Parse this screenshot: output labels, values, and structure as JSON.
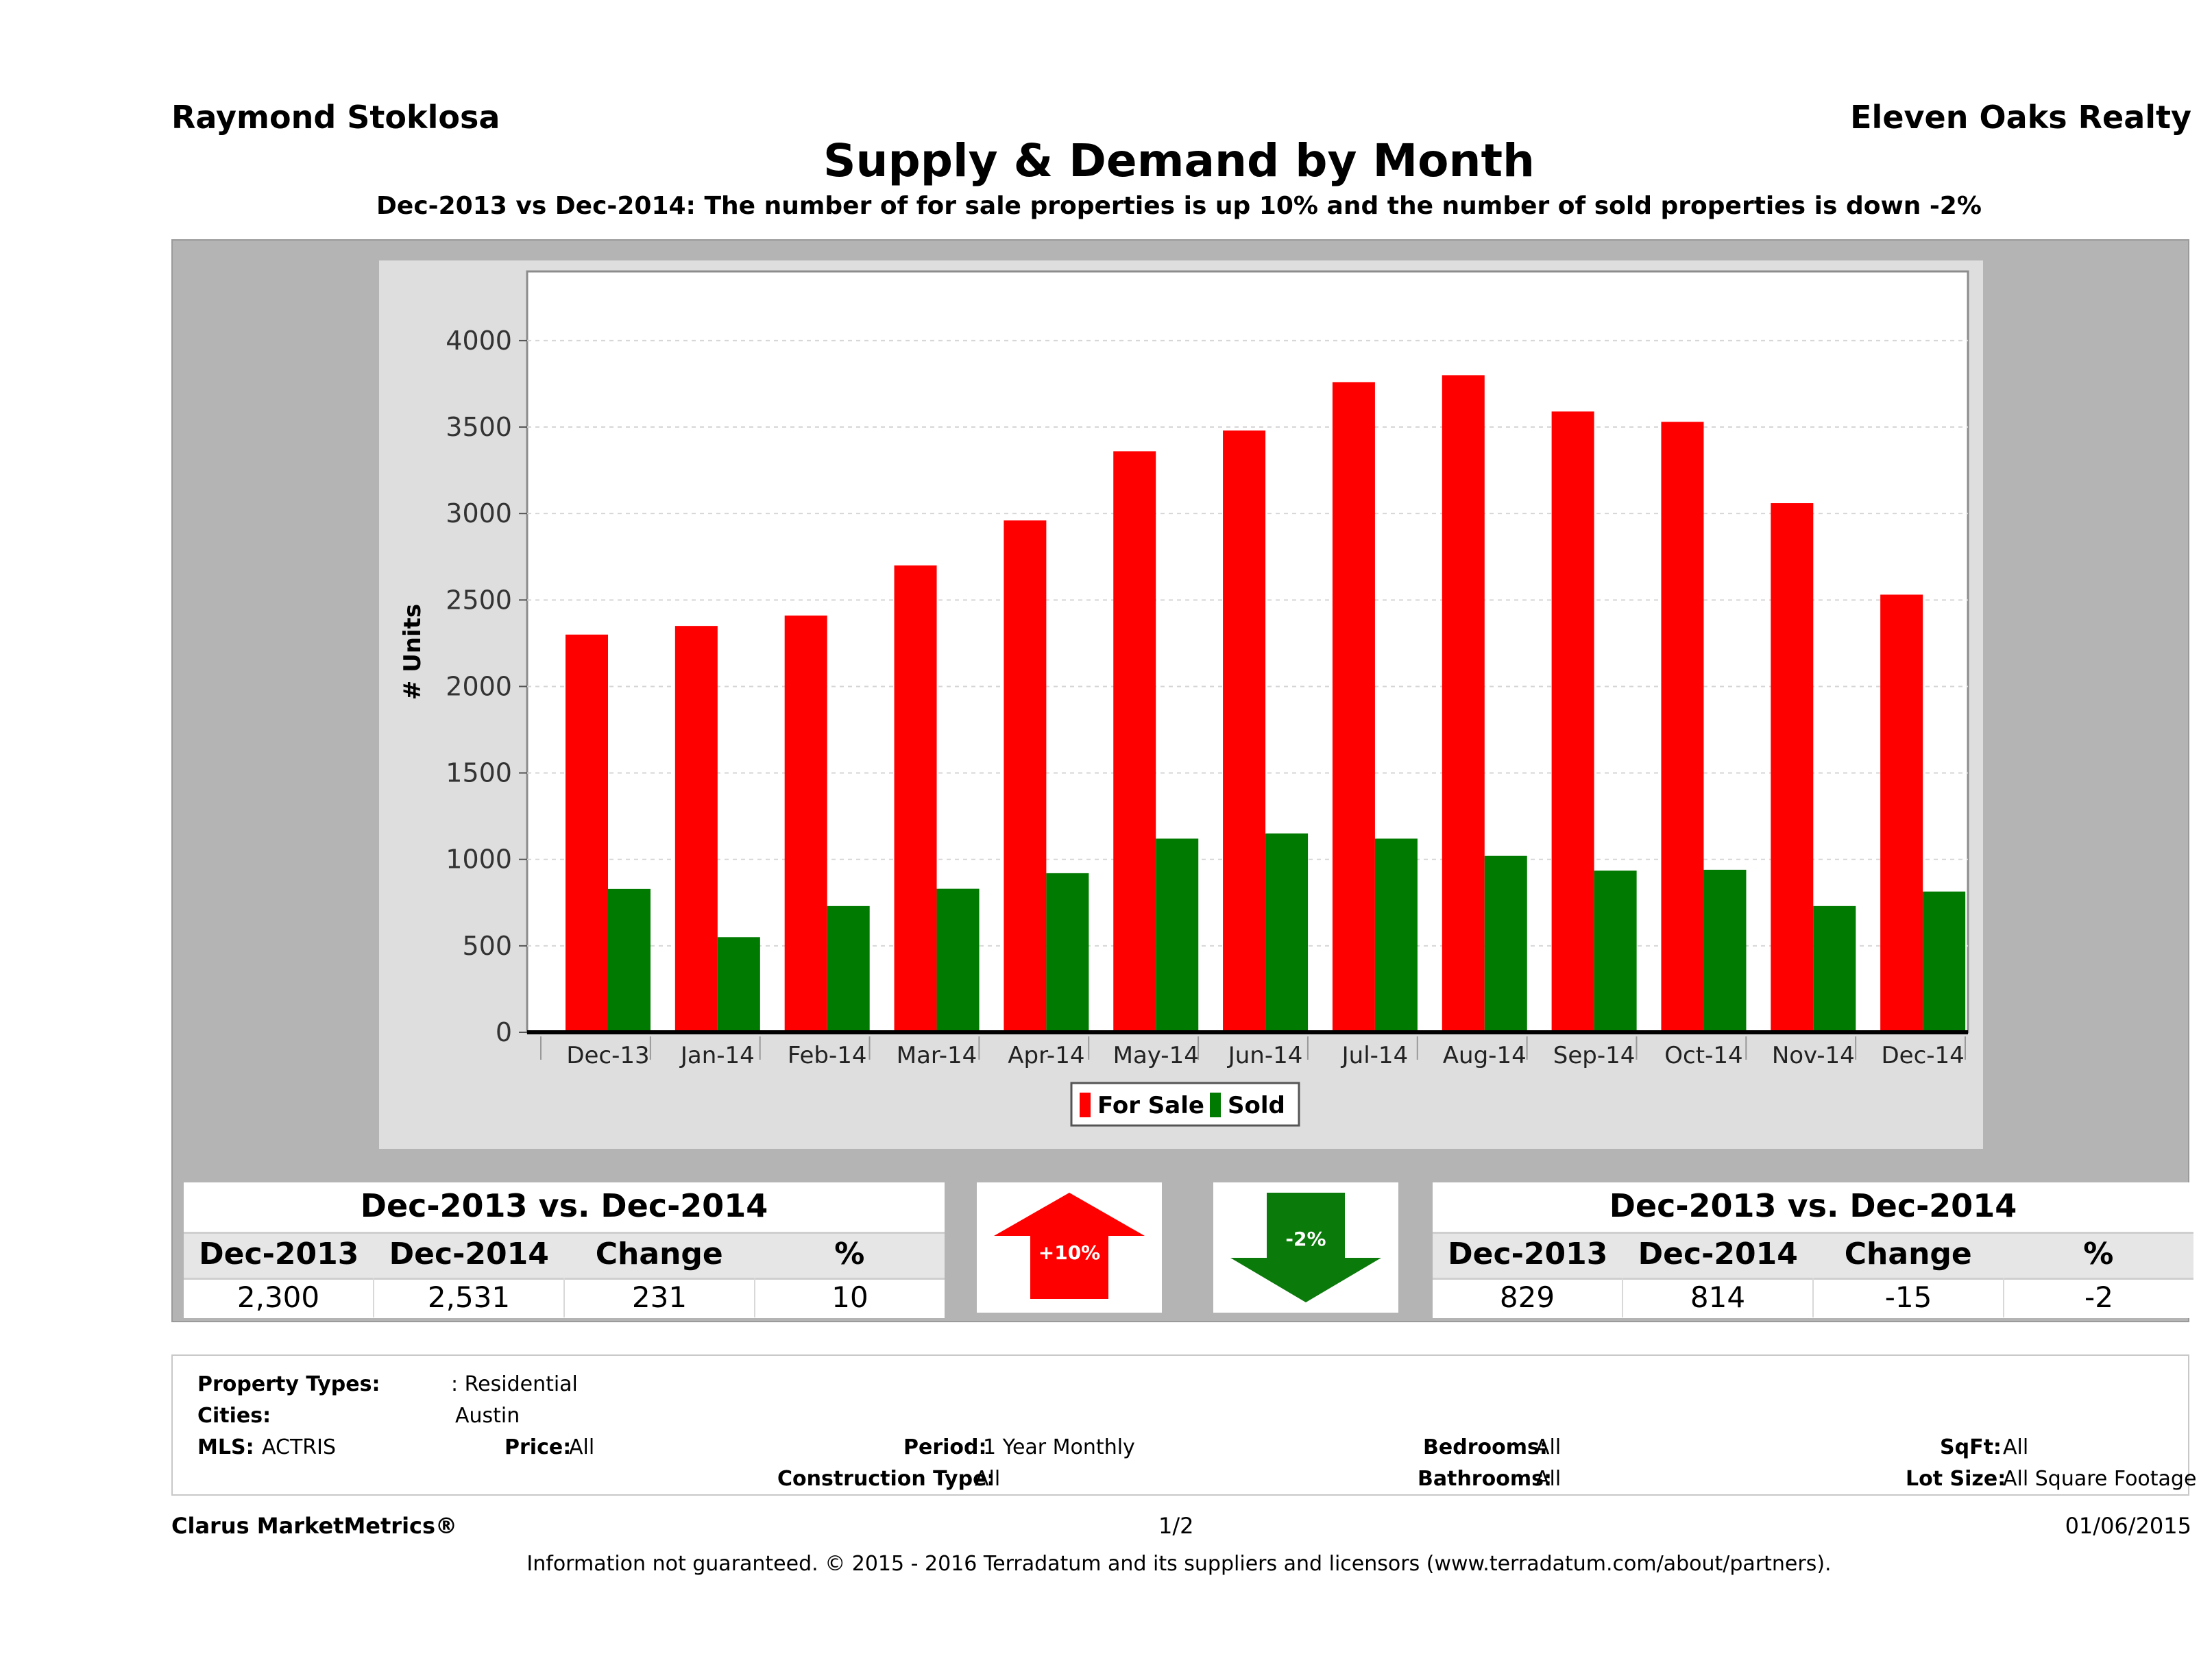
{
  "header": {
    "agent_name": "Raymond Stoklosa",
    "company": "Eleven Oaks Realty",
    "title": "Supply & Demand by Month",
    "subtitle": "Dec-2013 vs Dec-2014: The number of for sale properties is up 10% and the number of sold properties is down -2%"
  },
  "chart_data": {
    "type": "bar",
    "ylabel": "# Units",
    "xlabel": "",
    "ylim": [
      0,
      4400
    ],
    "yticks": [
      0,
      500,
      1000,
      1500,
      2000,
      2500,
      3000,
      3500,
      4000
    ],
    "grid": true,
    "legend_position": "bottom-center",
    "categories": [
      "Dec-13",
      "Jan-14",
      "Feb-14",
      "Mar-14",
      "Apr-14",
      "May-14",
      "Jun-14",
      "Jul-14",
      "Aug-14",
      "Sep-14",
      "Oct-14",
      "Nov-14",
      "Dec-14"
    ],
    "series": [
      {
        "name": "For Sale",
        "color": "#ff0000",
        "values": [
          2300,
          2350,
          2410,
          2700,
          2960,
          3360,
          3480,
          3760,
          3800,
          3590,
          3530,
          3060,
          2531
        ]
      },
      {
        "name": "Sold",
        "color": "#007a00",
        "values": [
          829,
          550,
          730,
          830,
          920,
          1120,
          1150,
          1120,
          1020,
          935,
          940,
          730,
          814
        ]
      }
    ]
  },
  "for_sale_table": {
    "title": "Dec-2013 vs. Dec-2014",
    "headers": [
      "Dec-2013",
      "Dec-2014",
      "Change",
      "%"
    ],
    "values": [
      "2,300",
      "2,531",
      "231",
      "10"
    ]
  },
  "sold_table": {
    "title": "Dec-2013 vs. Dec-2014",
    "headers": [
      "Dec-2013",
      "Dec-2014",
      "Change",
      "%"
    ],
    "values": [
      "829",
      "814",
      "-15",
      "-2"
    ]
  },
  "arrows": {
    "up_label": "+10%",
    "up_color": "#ff0000",
    "down_label": "-2%",
    "down_color": "#0a7a0a"
  },
  "filters": {
    "property_types_label": "Property Types:",
    "property_types_value": ": Residential",
    "cities_label": "Cities:",
    "cities_value": "Austin",
    "mls_label": "MLS:",
    "mls_value": "ACTRIS",
    "price_label": "Price:",
    "price_value": "All",
    "period_label": "Period:",
    "period_value": "1 Year Monthly",
    "construction_label": "Construction Type:",
    "construction_value": "All",
    "bedrooms_label": "Bedrooms:",
    "bedrooms_value": "All",
    "bathrooms_label": "Bathrooms:",
    "bathrooms_value": "All",
    "sqft_label": "SqFt:",
    "sqft_value": "All",
    "lot_label": "Lot Size:",
    "lot_value": "All Square Footage"
  },
  "footer": {
    "brand": "Clarus MarketMetrics®",
    "page": "1/2",
    "date": "01/06/2015",
    "disclaimer": "Information not guaranteed. © 2015 - 2016 Terradatum and its suppliers and licensors (www.terradatum.com/about/partners)."
  }
}
